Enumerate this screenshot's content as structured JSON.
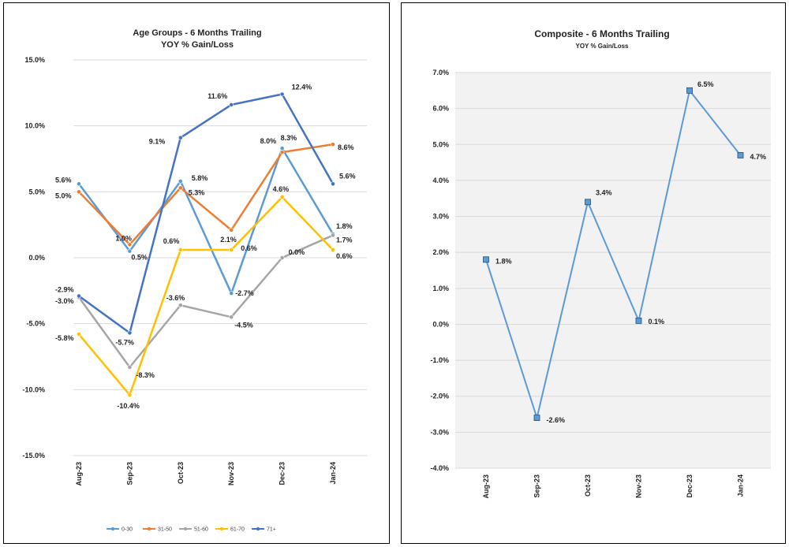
{
  "chart_data": [
    {
      "type": "line",
      "title": "Age Groups - 6 Months Trailing",
      "subtitle": "YOY % Gain/Loss",
      "categories": [
        "Aug-23",
        "Sep-23",
        "Oct-23",
        "Nov-23",
        "Dec-23",
        "Jan-24"
      ],
      "ylim": [
        -15,
        15
      ],
      "yticks": [
        -15,
        -10,
        -5,
        0,
        5,
        10,
        15
      ],
      "ytick_labels": [
        "-15.0%",
        "-10.0%",
        "-5.0%",
        "0.0%",
        "5.0%",
        "10.0%",
        "15.0%"
      ],
      "grid": true,
      "legend": "bottom",
      "series": [
        {
          "name": "0-30",
          "color": "#5b9bd5",
          "values": [
            5.6,
            0.5,
            5.8,
            -2.7,
            8.3,
            1.8
          ],
          "labels": [
            "5.6%",
            "0.5%",
            "5.8%",
            "-2.7%",
            "8.3%",
            "1.8%"
          ]
        },
        {
          "name": "31-50",
          "color": "#ed7d31",
          "values": [
            5.0,
            1.0,
            5.3,
            2.1,
            8.0,
            8.6
          ],
          "labels": [
            "5.0%",
            "1.0%",
            "5.3%",
            "2.1%",
            "8.0%",
            "8.6%"
          ]
        },
        {
          "name": "51-60",
          "color": "#a5a5a5",
          "values": [
            -3.0,
            -8.3,
            -3.6,
            -4.5,
            0.0,
            1.7
          ],
          "labels": [
            "-3.0%",
            "-8.3%",
            "-3.6%",
            "-4.5%",
            "0.0%",
            "1.7%"
          ]
        },
        {
          "name": "61-70",
          "color": "#ffc000",
          "values": [
            -5.8,
            -10.4,
            0.6,
            0.6,
            4.6,
            0.6
          ],
          "labels": [
            "-5.8%",
            "-10.4%",
            "0.6%",
            "0.6%",
            "4.6%",
            "0.6%"
          ]
        },
        {
          "name": "71+",
          "color": "#4472c4",
          "values": [
            -2.9,
            -5.7,
            9.1,
            11.6,
            12.4,
            5.6
          ],
          "labels": [
            "-2.9%",
            "-5.7%",
            "9.1%",
            "11.6%",
            "12.4%",
            "5.6%"
          ]
        }
      ]
    },
    {
      "type": "line",
      "title": "Composite - 6 Months Trailing",
      "subtitle": "YOY % Gain/Loss",
      "categories": [
        "Aug-23",
        "Sep-23",
        "Oct-23",
        "Nov-23",
        "Dec-23",
        "Jan-24"
      ],
      "ylim": [
        -4,
        7
      ],
      "yticks": [
        -4,
        -3,
        -2,
        -1,
        0,
        1,
        2,
        3,
        4,
        5,
        6,
        7
      ],
      "ytick_labels": [
        "-4.0%",
        "-3.0%",
        "-2.0%",
        "-1.0%",
        "0.0%",
        "1.0%",
        "2.0%",
        "3.0%",
        "4.0%",
        "5.0%",
        "6.0%",
        "7.0%"
      ],
      "grid": true,
      "plot_background": "#f2f2f2",
      "series": [
        {
          "color": "#5b9bd5",
          "values": [
            1.8,
            -2.6,
            3.4,
            0.1,
            6.5,
            4.7
          ],
          "labels": [
            "1.8%",
            "-2.6%",
            "3.4%",
            "0.1%",
            "6.5%",
            "4.7%"
          ]
        }
      ]
    }
  ]
}
